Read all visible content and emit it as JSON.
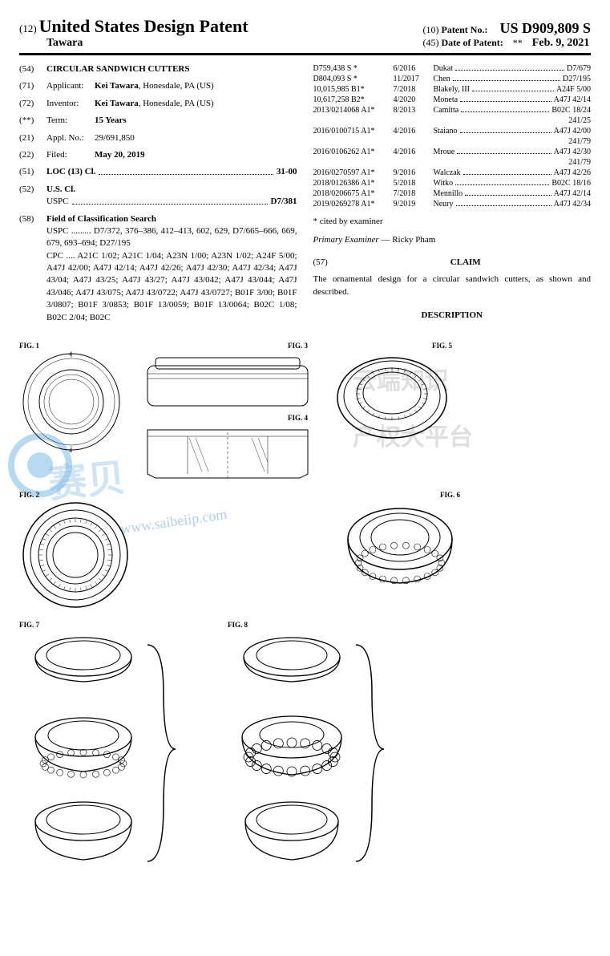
{
  "header": {
    "prefix12": "(12)",
    "title": "United States Design Patent",
    "author": "Tawara",
    "label10": "(10)",
    "patentNoLabel": "Patent No.:",
    "patentNo": "US D909,809 S",
    "label45": "(45)",
    "dopLabel": "Date of Patent:",
    "star": "**",
    "date": "Feb. 9, 2021"
  },
  "left": {
    "f54_num": "(54)",
    "f54_val": "CIRCULAR SANDWICH CUTTERS",
    "f71_num": "(71)",
    "f71_label": "Applicant:",
    "f71_val": "Kei Tawara, Honesdale, PA (US)",
    "f72_num": "(72)",
    "f72_label": "Inventor:",
    "f72_val": "Kei Tawara, Honesdale, PA (US)",
    "fterm_num": "(**)",
    "fterm_label": "Term:",
    "fterm_val": "15 Years",
    "f21_num": "(21)",
    "f21_label": "Appl. No.:",
    "f21_val": "29/691,850",
    "f22_num": "(22)",
    "f22_label": "Filed:",
    "f22_val": "May 20, 2019",
    "f51_num": "(51)",
    "f51_label": "LOC (13) Cl.",
    "f51_val": "31-00",
    "f52_num": "(52)",
    "f52_label": "U.S. Cl.",
    "f52_sub": "USPC",
    "f52_val": "D7/381",
    "f58_num": "(58)",
    "f58_label": "Field of Classification Search",
    "f58_uspc": "USPC ......... D7/372, 376–386, 412–413, 602, 629, D7/665–666, 669, 679, 693–694; D27/195",
    "f58_cpc": "CPC .... A21C 1/02; A21C 1/04; A23N 1/00; A23N 1/02; A24F 5/00; A47J 42/00; A47J 42/14; A47J 42/26; A47J 42/30; A47J 42/34; A47J 43/04; A47J 43/25; A47J 43/27; A47J 43/042; A47J 43/044; A47J 43/046; A47J 43/075; A47J 43/0722; A47J 43/0727; B01F 3/00; B01F 3/0807; B01F 3/0853; B01F 13/0059; B01F 13/0064; B02C 1/08; B02C 2/04; B02C"
  },
  "right": {
    "refs": [
      {
        "p": "D759,438 S *",
        "d": "6/2016",
        "n": "Dukat",
        "c": "D7/679"
      },
      {
        "p": "D804,093 S *",
        "d": "11/2017",
        "n": "Chen",
        "c": "D27/195"
      },
      {
        "p": "10,015,985 B1*",
        "d": "7/2018",
        "n": "Blakely, III",
        "c": "A24F 5/00"
      },
      {
        "p": "10,617,258 B2*",
        "d": "4/2020",
        "n": "Moneta",
        "c": "A47J 42/14"
      },
      {
        "p": "2013/0214068 A1*",
        "d": "8/2013",
        "n": "Camitta",
        "c": "B02C 18/24",
        "sub": "241/25"
      },
      {
        "p": "2016/0100715 A1*",
        "d": "4/2016",
        "n": "Staiano",
        "c": "A47J 42/00",
        "sub": "241/79"
      },
      {
        "p": "2016/0106262 A1*",
        "d": "4/2016",
        "n": "Mroue",
        "c": "A47J 42/30",
        "sub": "241/79"
      },
      {
        "p": "2016/0270597 A1*",
        "d": "9/2016",
        "n": "Walczak",
        "c": "A47J 42/26"
      },
      {
        "p": "2018/0126386 A1*",
        "d": "5/2018",
        "n": "Witko",
        "c": "B02C 18/16"
      },
      {
        "p": "2018/0206675 A1*",
        "d": "7/2018",
        "n": "Mennillo",
        "c": "A47J 42/14"
      },
      {
        "p": "2019/0269278 A1*",
        "d": "9/2019",
        "n": "Neury",
        "c": "A47J 42/34"
      }
    ],
    "cited": "* cited by examiner",
    "examinerLabel": "Primary Examiner",
    "examiner": "Ricky Pham",
    "f57_num": "(57)",
    "claimTitle": "CLAIM",
    "claimText": "The ornamental design for a circular sandwich cutters, as shown and described.",
    "descTitle": "DESCRIPTION"
  },
  "figs": {
    "f1": "FIG. 1",
    "f2": "FIG. 2",
    "f3": "FIG. 3",
    "f4": "FIG. 4",
    "f5": "FIG. 5",
    "f6": "FIG. 6",
    "f7": "FIG. 7",
    "f8": "FIG. 8"
  },
  "watermarks": {
    "big1": "赛贝",
    "cn1": "云端知识",
    "cn2": "产权大平台",
    "url": "www.saibeiip.com"
  }
}
